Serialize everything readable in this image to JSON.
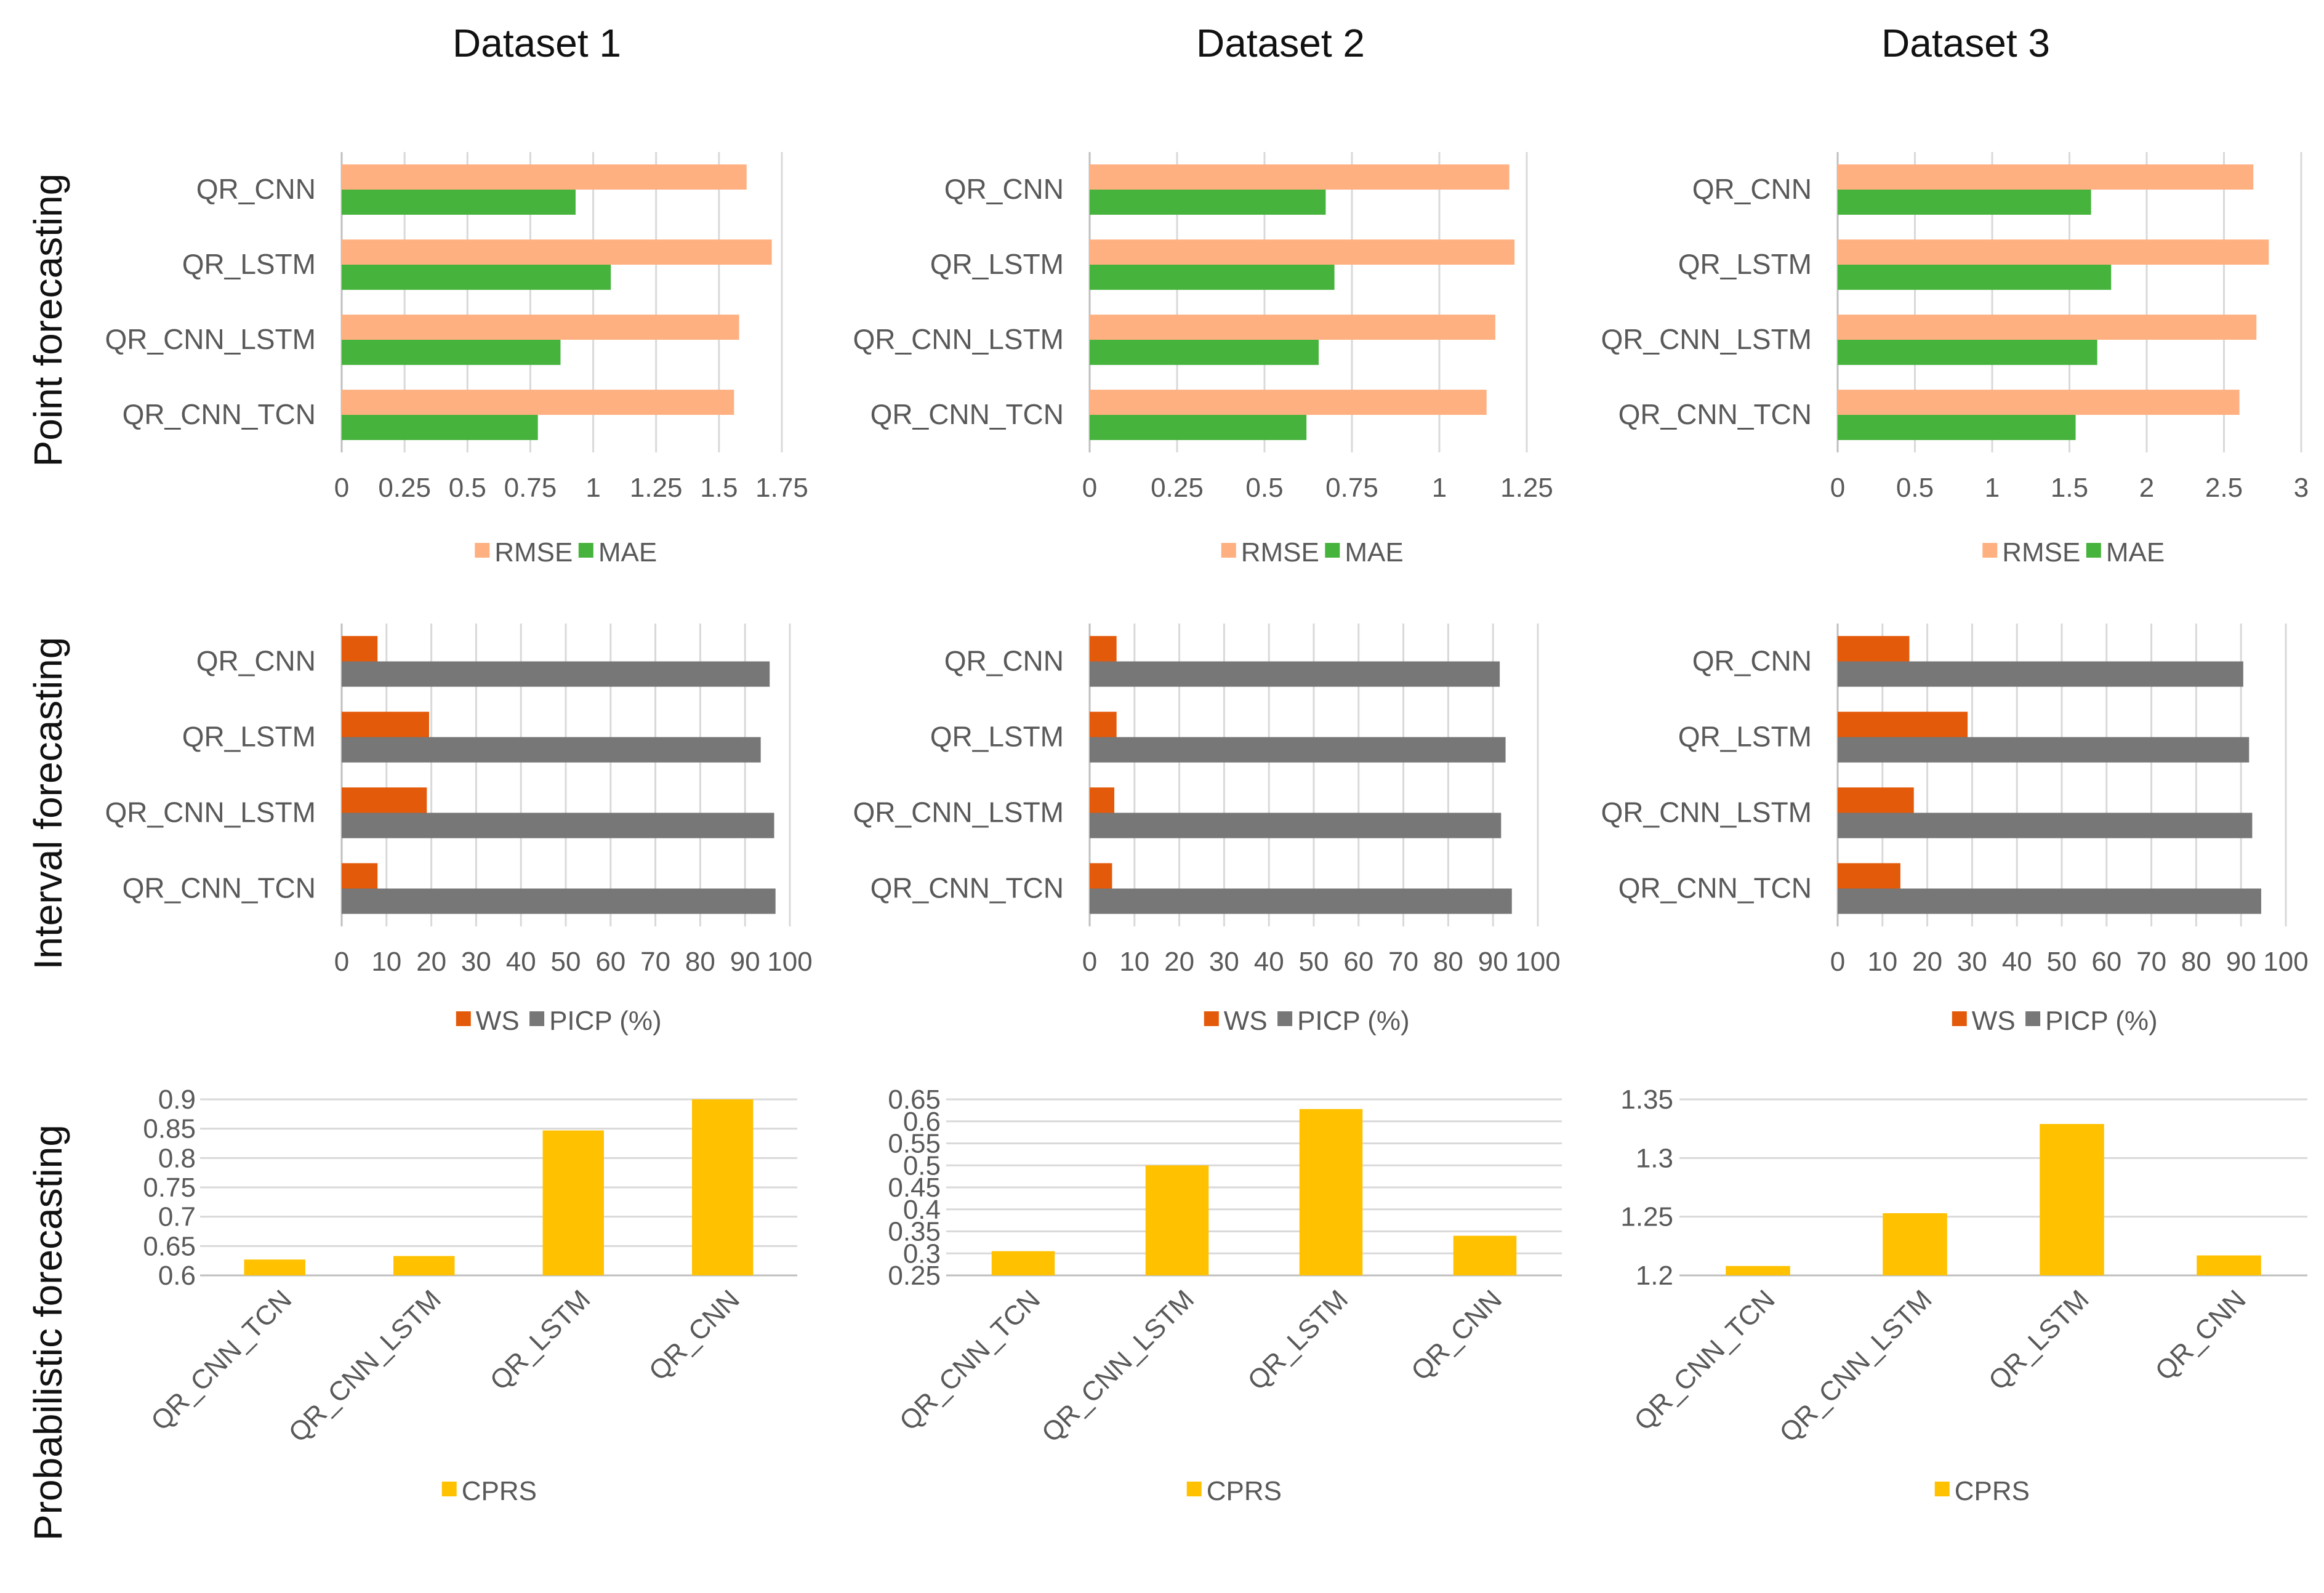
{
  "columns": [
    "Dataset 1",
    "Dataset 2",
    "Dataset 3"
  ],
  "rows": [
    "Point forecasting",
    "Interval forecasting",
    "Probabilistic forecasting"
  ],
  "colors": {
    "RMSE": "#FFB081",
    "MAE": "#46B33C",
    "WS": "#E35A0B",
    "PICP": "#777777",
    "CPRS": "#FFC100",
    "grid": "#D9D9D9",
    "axis": "#BFBFBF",
    "text": "#595959"
  },
  "chart_data": [
    {
      "panel": "point-1",
      "type": "bar",
      "orientation": "horizontal",
      "dataset": "Dataset 1",
      "categories": [
        "QR_CNN",
        "QR_LSTM",
        "QR_CNN_LSTM",
        "QR_CNN_TCN"
      ],
      "series": [
        {
          "name": "RMSE",
          "values": [
            1.61,
            1.71,
            1.58,
            1.56
          ]
        },
        {
          "name": "MAE",
          "values": [
            0.93,
            1.07,
            0.87,
            0.78
          ]
        }
      ],
      "xlim": [
        0,
        1.75
      ],
      "ticks": [
        0,
        0.25,
        0.5,
        0.75,
        1,
        1.25,
        1.5,
        1.75
      ],
      "tick_labels": [
        "0",
        "0.25",
        "0.5",
        "0.75",
        "1",
        "1.25",
        "1.5",
        "1.75"
      ],
      "legend": [
        "RMSE",
        "MAE"
      ]
    },
    {
      "panel": "point-2",
      "type": "bar",
      "orientation": "horizontal",
      "dataset": "Dataset 2",
      "categories": [
        "QR_CNN",
        "QR_LSTM",
        "QR_CNN_LSTM",
        "QR_CNN_TCN"
      ],
      "series": [
        {
          "name": "RMSE",
          "values": [
            1.2,
            1.215,
            1.16,
            1.135
          ]
        },
        {
          "name": "MAE",
          "values": [
            0.675,
            0.7,
            0.655,
            0.62
          ]
        }
      ],
      "xlim": [
        0,
        1.25
      ],
      "ticks": [
        0,
        0.25,
        0.5,
        0.75,
        1,
        1.25
      ],
      "tick_labels": [
        "0",
        "0.25",
        "0.5",
        "0.75",
        "1",
        "1.25"
      ],
      "legend": [
        "RMSE",
        "MAE"
      ]
    },
    {
      "panel": "point-3",
      "type": "bar",
      "orientation": "horizontal",
      "dataset": "Dataset 3",
      "categories": [
        "QR_CNN",
        "QR_LSTM",
        "QR_CNN_LSTM",
        "QR_CNN_TCN"
      ],
      "series": [
        {
          "name": "RMSE",
          "values": [
            2.69,
            2.79,
            2.71,
            2.6
          ]
        },
        {
          "name": "MAE",
          "values": [
            1.64,
            1.77,
            1.68,
            1.54
          ]
        }
      ],
      "xlim": [
        0,
        3
      ],
      "ticks": [
        0,
        0.5,
        1,
        1.5,
        2,
        2.5,
        3
      ],
      "tick_labels": [
        "0",
        "0.5",
        "1",
        "1.5",
        "2",
        "2.5",
        "3"
      ],
      "legend": [
        "RMSE",
        "MAE"
      ]
    },
    {
      "panel": "interval-1",
      "type": "bar",
      "orientation": "horizontal",
      "dataset": "Dataset 1",
      "categories": [
        "QR_CNN",
        "QR_LSTM",
        "QR_CNN_LSTM",
        "QR_CNN_TCN"
      ],
      "series": [
        {
          "name": "WS",
          "values": [
            8,
            19.5,
            19,
            8
          ]
        },
        {
          "name": "PICP (%)",
          "values": [
            95.5,
            93.5,
            96.5,
            96.8
          ]
        }
      ],
      "xlim": [
        0,
        100
      ],
      "ticks": [
        0,
        10,
        20,
        30,
        40,
        50,
        60,
        70,
        80,
        90,
        100
      ],
      "tick_labels": [
        "0",
        "10",
        "20",
        "30",
        "40",
        "50",
        "60",
        "70",
        "80",
        "90",
        "100"
      ],
      "legend": [
        "WS",
        "PICP (%)"
      ]
    },
    {
      "panel": "interval-2",
      "type": "bar",
      "orientation": "horizontal",
      "dataset": "Dataset 2",
      "categories": [
        "QR_CNN",
        "QR_LSTM",
        "QR_CNN_LSTM",
        "QR_CNN_TCN"
      ],
      "series": [
        {
          "name": "WS",
          "values": [
            6,
            6,
            5.5,
            5
          ]
        },
        {
          "name": "PICP (%)",
          "values": [
            91.5,
            92.8,
            91.8,
            94.2
          ]
        }
      ],
      "xlim": [
        0,
        100
      ],
      "ticks": [
        0,
        10,
        20,
        30,
        40,
        50,
        60,
        70,
        80,
        90,
        100
      ],
      "tick_labels": [
        "0",
        "10",
        "20",
        "30",
        "40",
        "50",
        "60",
        "70",
        "80",
        "90",
        "100"
      ],
      "legend": [
        "WS",
        "PICP (%)"
      ]
    },
    {
      "panel": "interval-3",
      "type": "bar",
      "orientation": "horizontal",
      "dataset": "Dataset 3",
      "categories": [
        "QR_CNN",
        "QR_LSTM",
        "QR_CNN_LSTM",
        "QR_CNN_TCN"
      ],
      "series": [
        {
          "name": "WS",
          "values": [
            16,
            29,
            17,
            14
          ]
        },
        {
          "name": "PICP (%)",
          "values": [
            90.5,
            91.8,
            92.5,
            94.5
          ]
        }
      ],
      "xlim": [
        0,
        100
      ],
      "ticks": [
        0,
        10,
        20,
        30,
        40,
        50,
        60,
        70,
        80,
        90,
        100
      ],
      "tick_labels": [
        "0",
        "10",
        "20",
        "30",
        "40",
        "50",
        "60",
        "70",
        "80",
        "90",
        "100"
      ],
      "legend": [
        "WS",
        "PICP (%)"
      ]
    },
    {
      "panel": "prob-1",
      "type": "bar",
      "orientation": "vertical",
      "dataset": "Dataset 1",
      "categories": [
        "QR_CNN_TCN",
        "QR_CNN_LSTM",
        "QR_LSTM",
        "QR_CNN"
      ],
      "series": [
        {
          "name": "CPRS",
          "values": [
            0.627,
            0.633,
            0.847,
            0.9
          ]
        }
      ],
      "ylim": [
        0.6,
        0.9
      ],
      "ticks": [
        0.6,
        0.65,
        0.7,
        0.75,
        0.8,
        0.85,
        0.9
      ],
      "tick_labels": [
        "0.6",
        "0.65",
        "0.7",
        "0.75",
        "0.8",
        "0.85",
        "0.9"
      ],
      "legend": [
        "CPRS"
      ]
    },
    {
      "panel": "prob-2",
      "type": "bar",
      "orientation": "vertical",
      "dataset": "Dataset 2",
      "categories": [
        "QR_CNN_TCN",
        "QR_CNN_LSTM",
        "QR_LSTM",
        "QR_CNN"
      ],
      "series": [
        {
          "name": "CPRS",
          "values": [
            0.305,
            0.5,
            0.628,
            0.34
          ]
        }
      ],
      "ylim": [
        0.25,
        0.65
      ],
      "ticks": [
        0.25,
        0.3,
        0.35,
        0.4,
        0.45,
        0.5,
        0.55,
        0.6,
        0.65
      ],
      "tick_labels": [
        "0.25",
        "0.3",
        "0.35",
        "0.4",
        "0.45",
        "0.5",
        "0.55",
        "0.6",
        "0.65"
      ],
      "legend": [
        "CPRS"
      ]
    },
    {
      "panel": "prob-3",
      "type": "bar",
      "orientation": "vertical",
      "dataset": "Dataset 3",
      "categories": [
        "QR_CNN_TCN",
        "QR_CNN_LSTM",
        "QR_LSTM",
        "QR_CNN"
      ],
      "series": [
        {
          "name": "CPRS",
          "values": [
            1.208,
            1.253,
            1.329,
            1.217
          ]
        }
      ],
      "ylim": [
        1.2,
        1.35
      ],
      "ticks": [
        1.2,
        1.25,
        1.3,
        1.35
      ],
      "tick_labels": [
        "1.2",
        "1.25",
        "1.3",
        "1.35"
      ],
      "legend": [
        "CPRS"
      ]
    }
  ]
}
